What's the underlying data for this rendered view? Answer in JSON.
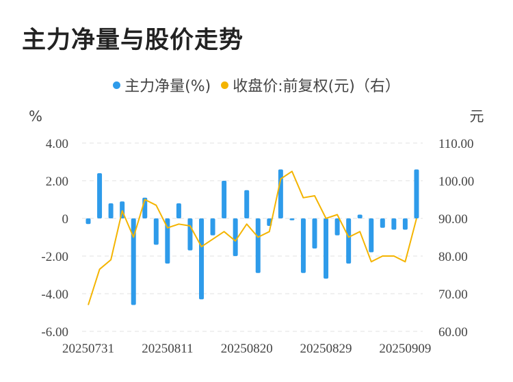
{
  "title": "主力净量与股价走势",
  "legend": {
    "bar_label": "主力净量(%)",
    "line_label": "收盘价:前复权(元)（右）"
  },
  "colors": {
    "bar": "#2E9BEA",
    "line": "#F4B400",
    "grid": "#E0E0E0"
  },
  "chart_data": {
    "type": "bar+line",
    "left_unit": "%",
    "right_unit": "元",
    "left_axis": {
      "ylim": [
        -6,
        4
      ],
      "ticks": [
        "4.00",
        "2.00",
        "0",
        "-2.00",
        "-4.00",
        "-6.00"
      ],
      "values": [
        4,
        2,
        0,
        -2,
        -4,
        -6
      ]
    },
    "right_axis": {
      "ylim": [
        60,
        110
      ],
      "ticks": [
        "110.00",
        "100.00",
        "90.00",
        "80.00",
        "70.00",
        "60.00"
      ],
      "values": [
        110,
        100,
        90,
        80,
        70,
        60
      ]
    },
    "x_tick_labels": [
      "20250731",
      "20250811",
      "20250820",
      "20250829",
      "20250909"
    ],
    "x_tick_indices": [
      0,
      7,
      14,
      21,
      28
    ],
    "series": [
      {
        "name": "主力净量(%)",
        "type": "bar",
        "values": [
          -0.3,
          2.4,
          0.8,
          0.9,
          -4.6,
          1.1,
          -1.4,
          -2.4,
          0.8,
          -1.7,
          -4.3,
          -0.9,
          2.0,
          -2.0,
          1.5,
          -2.9,
          -0.4,
          2.6,
          -0.1,
          -2.9,
          -1.6,
          -3.2,
          -0.9,
          -2.4,
          0.2,
          -1.8,
          -0.5,
          -0.6,
          -0.6,
          2.6
        ]
      },
      {
        "name": "收盘价:前复权(元)（右）",
        "type": "line",
        "values": [
          67.0,
          76.5,
          79.0,
          92.0,
          85.0,
          95.0,
          93.5,
          87.5,
          88.5,
          88.0,
          82.5,
          84.5,
          86.5,
          84.0,
          88.5,
          85.0,
          86.5,
          100.5,
          102.5,
          95.5,
          96.0,
          90.0,
          91.0,
          85.0,
          86.5,
          78.5,
          80.0,
          80.0,
          78.5,
          90.0
        ]
      }
    ]
  }
}
